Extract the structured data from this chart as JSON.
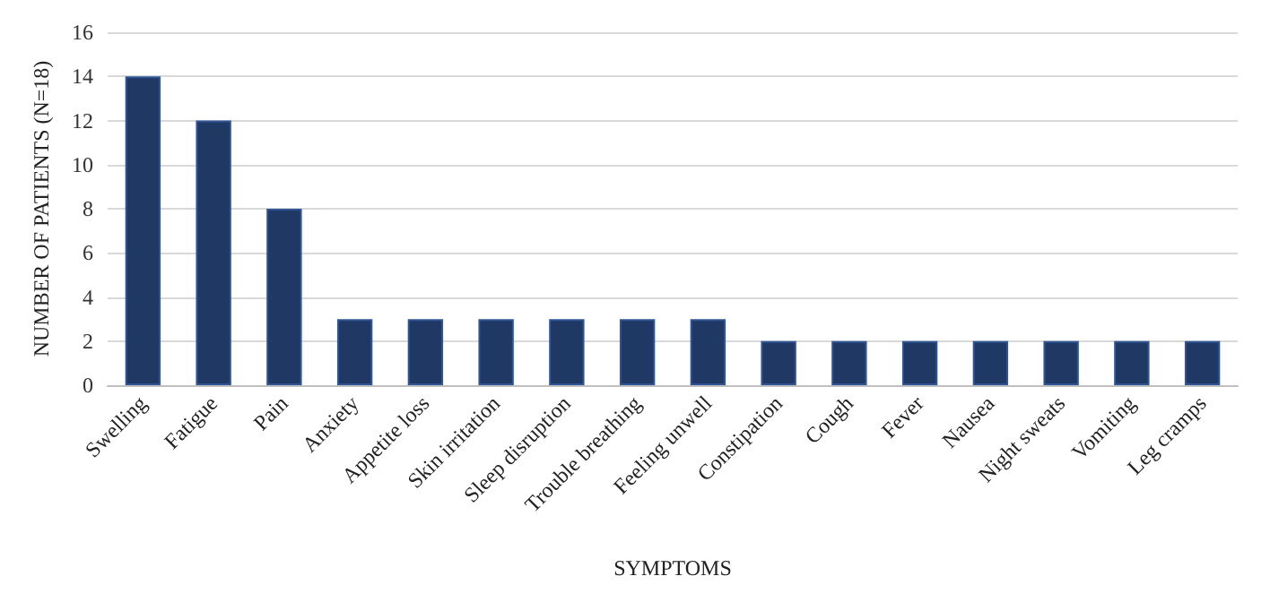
{
  "chart_data": {
    "type": "bar",
    "xlabel": "SYMPTOMS",
    "ylabel": "NUMBER OF PATIENTS (N=18)",
    "categories": [
      "Swelling",
      "Fatigue",
      "Pain",
      "Anxiety",
      "Appetite loss",
      "Skin irritation",
      "Sleep disruption",
      "Trouble breathing",
      "Feeling unwell",
      "Constipation",
      "Cough",
      "Fever",
      "Nausea",
      "Night sweats",
      "Vomiting",
      "Leg cramps"
    ],
    "values": [
      14,
      12,
      8,
      3,
      3,
      3,
      3,
      3,
      3,
      2,
      2,
      2,
      2,
      2,
      2,
      2
    ],
    "color": "#1f3864",
    "ylim": [
      0,
      16
    ],
    "yticks": [
      0,
      2,
      4,
      6,
      8,
      10,
      12,
      14,
      16
    ],
    "grid": "y"
  }
}
